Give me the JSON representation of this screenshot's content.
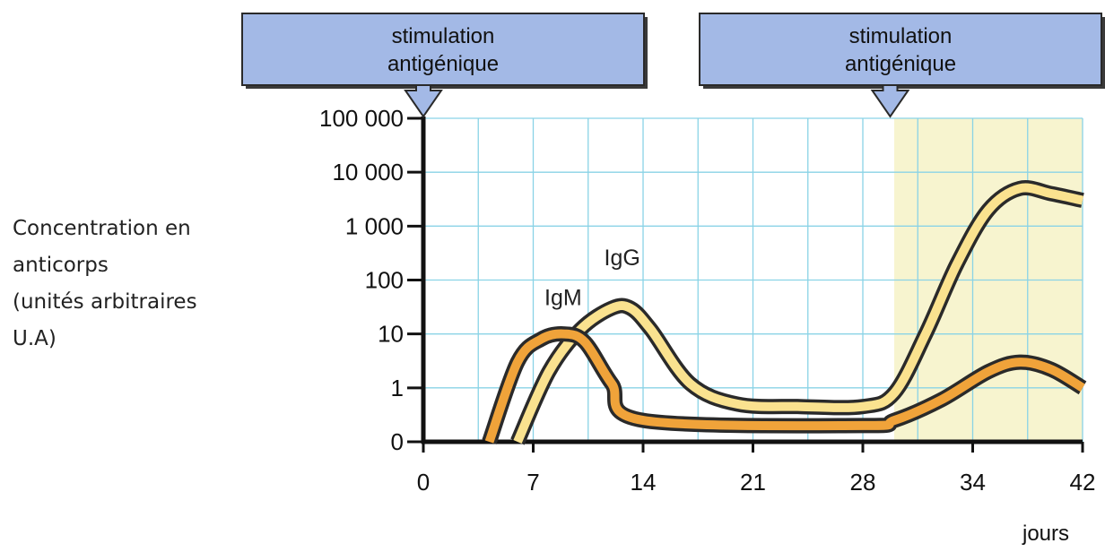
{
  "chart_data": {
    "type": "line",
    "title": "",
    "ylabel_lines": [
      "Concentration en",
      "anticorps",
      "(unités arbitraires",
      "U.A)"
    ],
    "xunit": "jours",
    "x_ticks": [
      "0",
      "7",
      "14",
      "21",
      "28",
      "34",
      "42"
    ],
    "y_ticks": [
      "0",
      "1",
      "10",
      "100",
      "1 000",
      "10 000",
      "100 000"
    ],
    "y_scale": "log",
    "grid": true,
    "highlight_region": {
      "from_day": 30,
      "to_day": 42,
      "color": "#f7f4cf"
    },
    "stimulations": [
      {
        "line1": "stimulation",
        "line2": "antigénique",
        "day": 0
      },
      {
        "line1": "stimulation",
        "line2": "antigénique",
        "day": 29
      }
    ],
    "series": [
      {
        "name": "IgM",
        "color": "#f0a33a",
        "points": [
          [
            4.2,
            0
          ],
          [
            6,
            3
          ],
          [
            7.5,
            8
          ],
          [
            9,
            10
          ],
          [
            10.3,
            7
          ],
          [
            12,
            1.2
          ],
          [
            14,
            0.25
          ],
          [
            28,
            0.2
          ],
          [
            30,
            0.25
          ],
          [
            33,
            0.6
          ],
          [
            36,
            2
          ],
          [
            38,
            3
          ],
          [
            40,
            2.2
          ],
          [
            42,
            1
          ]
        ]
      },
      {
        "name": "IgG",
        "color": "#fae28f",
        "points": [
          [
            6,
            0
          ],
          [
            8,
            2
          ],
          [
            10,
            12
          ],
          [
            12,
            30
          ],
          [
            13.2,
            30
          ],
          [
            14.5,
            12
          ],
          [
            17,
            1.2
          ],
          [
            20,
            0.5
          ],
          [
            24,
            0.45
          ],
          [
            28,
            0.45
          ],
          [
            30,
            0.8
          ],
          [
            32,
            10
          ],
          [
            34,
            200
          ],
          [
            36,
            2000
          ],
          [
            38,
            5000
          ],
          [
            40,
            4000
          ],
          [
            42,
            3000
          ]
        ]
      }
    ]
  }
}
